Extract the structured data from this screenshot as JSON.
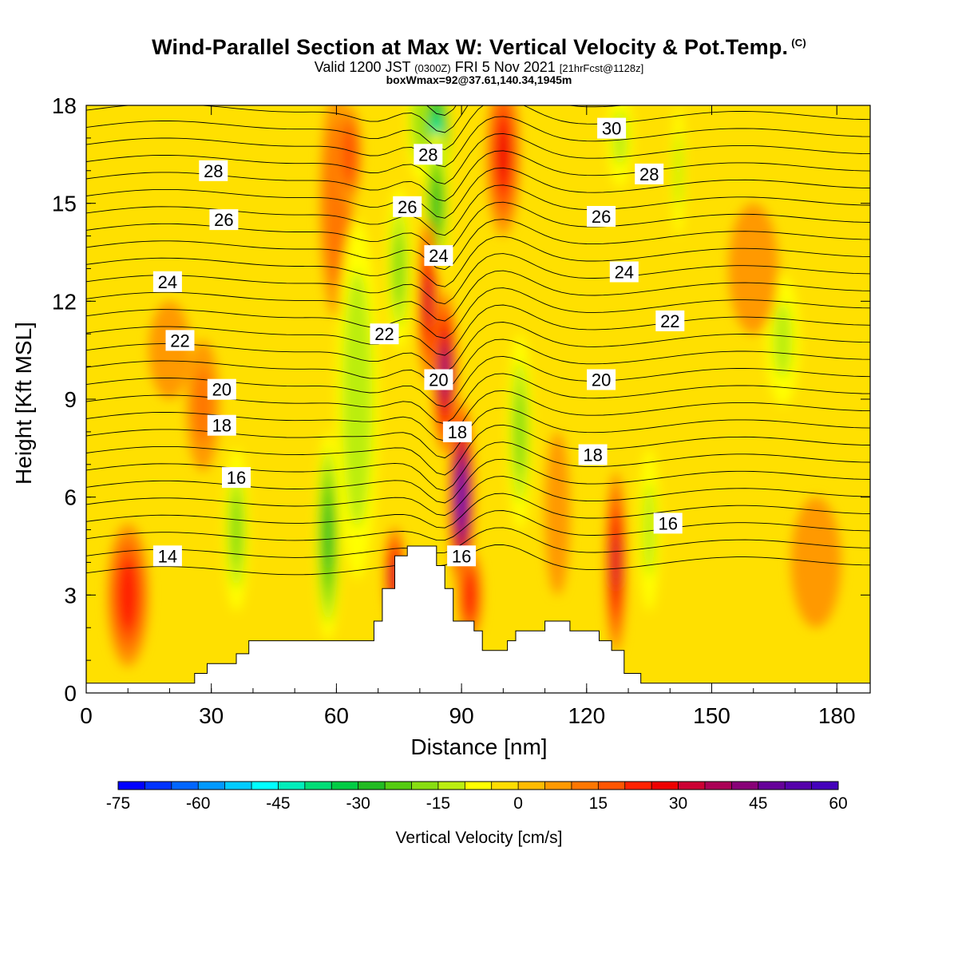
{
  "title": {
    "main": "Wind-Parallel Section at Max W: Vertical Velocity & Pot.Temp.",
    "copyright": "(C)",
    "valid_prefix": "Valid 1200 JST",
    "valid_z": "(0300Z)",
    "valid_date": "FRI 5 Nov 2021",
    "valid_fcst": "[21hrFcst@1128z]",
    "box": "boxWmax=92@37.61,140.34,1945m"
  },
  "chart_data": {
    "type": "heatmap",
    "xlabel": "Distance [nm]",
    "ylabel": "Height [Kft MSL]",
    "xlim": [
      0,
      188
    ],
    "ylim": [
      0,
      18
    ],
    "xticks": [
      "0",
      "30",
      "60",
      "90",
      "120",
      "150",
      "180"
    ],
    "yticks": [
      "0",
      "3",
      "6",
      "9",
      "12",
      "15",
      "18"
    ],
    "colorbar": {
      "label": "Vertical Velocity [cm/s]",
      "ticks": [
        "-75",
        "-60",
        "-45",
        "-30",
        "-15",
        "0",
        "15",
        "30",
        "45",
        "60"
      ],
      "min": -75,
      "max": 60,
      "step": 5,
      "colors": [
        "#0000ff",
        "#0033ff",
        "#0066ff",
        "#0099ff",
        "#00ccff",
        "#00ffff",
        "#00eebb",
        "#00dd77",
        "#00cc44",
        "#22bb22",
        "#55cc11",
        "#88dd11",
        "#bbee11",
        "#ffff00",
        "#ffdd00",
        "#ffbb00",
        "#ff9900",
        "#ff7700",
        "#ff5500",
        "#ff2200",
        "#ee0000",
        "#cc0033",
        "#aa0055",
        "#880077",
        "#660099",
        "#5500aa",
        "#4400bb"
      ]
    },
    "theta_labels": [
      {
        "text": "14",
        "x": 19.5,
        "y": 4.2
      },
      {
        "text": "16",
        "x": 36,
        "y": 6.6
      },
      {
        "text": "18",
        "x": 32.5,
        "y": 8.2
      },
      {
        "text": "20",
        "x": 32.5,
        "y": 9.3
      },
      {
        "text": "22",
        "x": 22.5,
        "y": 10.8
      },
      {
        "text": "24",
        "x": 19.5,
        "y": 12.6
      },
      {
        "text": "26",
        "x": 33,
        "y": 14.5
      },
      {
        "text": "28",
        "x": 30.5,
        "y": 16.0
      },
      {
        "text": "22",
        "x": 71.5,
        "y": 11.0
      },
      {
        "text": "26",
        "x": 77,
        "y": 14.9
      },
      {
        "text": "28",
        "x": 82,
        "y": 16.5
      },
      {
        "text": "24",
        "x": 84.5,
        "y": 13.4
      },
      {
        "text": "20",
        "x": 84.5,
        "y": 9.6
      },
      {
        "text": "18",
        "x": 89,
        "y": 8.0
      },
      {
        "text": "16",
        "x": 90,
        "y": 4.2
      },
      {
        "text": "30",
        "x": 126,
        "y": 17.3
      },
      {
        "text": "28",
        "x": 135,
        "y": 15.9
      },
      {
        "text": "26",
        "x": 123.5,
        "y": 14.6
      },
      {
        "text": "24",
        "x": 129,
        "y": 12.9
      },
      {
        "text": "22",
        "x": 140,
        "y": 11.4
      },
      {
        "text": "20",
        "x": 123.5,
        "y": 9.6
      },
      {
        "text": "18",
        "x": 121.5,
        "y": 7.3
      },
      {
        "text": "16",
        "x": 139.5,
        "y": 5.2
      }
    ],
    "terrain": [
      [
        0,
        0.3
      ],
      [
        26,
        0.3
      ],
      [
        26,
        0.6
      ],
      [
        29,
        0.6
      ],
      [
        29,
        0.9
      ],
      [
        36,
        0.9
      ],
      [
        36,
        1.2
      ],
      [
        39,
        1.2
      ],
      [
        39,
        1.6
      ],
      [
        69,
        1.6
      ],
      [
        69,
        2.2
      ],
      [
        71,
        2.2
      ],
      [
        71,
        3.2
      ],
      [
        74,
        3.2
      ],
      [
        74,
        4.2
      ],
      [
        77,
        4.2
      ],
      [
        77,
        4.5
      ],
      [
        84,
        4.5
      ],
      [
        84,
        3.9
      ],
      [
        86,
        3.9
      ],
      [
        86,
        3.2
      ],
      [
        88,
        3.2
      ],
      [
        88,
        2.2
      ],
      [
        93,
        2.2
      ],
      [
        93,
        1.9
      ],
      [
        95,
        1.9
      ],
      [
        95,
        1.3
      ],
      [
        101,
        1.3
      ],
      [
        101,
        1.6
      ],
      [
        103,
        1.6
      ],
      [
        103,
        1.9
      ],
      [
        110,
        1.9
      ],
      [
        110,
        2.2
      ],
      [
        116,
        2.2
      ],
      [
        116,
        1.9
      ],
      [
        123,
        1.9
      ],
      [
        123,
        1.6
      ],
      [
        126,
        1.6
      ],
      [
        126,
        1.3
      ],
      [
        129,
        1.3
      ],
      [
        129,
        0.6
      ],
      [
        133,
        0.6
      ],
      [
        133,
        0.3
      ],
      [
        188,
        0.3
      ]
    ],
    "w_features": [
      {
        "x": 10,
        "y": 3.0,
        "rx": 5,
        "ry": 2.2,
        "w": 22
      },
      {
        "x": 28,
        "y": 8.8,
        "rx": 4,
        "ry": 2.0,
        "w": 10
      },
      {
        "x": 20,
        "y": 10.5,
        "rx": 5,
        "ry": 1.5,
        "w": 8
      },
      {
        "x": 60,
        "y": 15.0,
        "rx": 4,
        "ry": 3.5,
        "w": 12
      },
      {
        "x": 63,
        "y": 16.5,
        "rx": 3,
        "ry": 1.5,
        "w": 18
      },
      {
        "x": 58,
        "y": 4.8,
        "rx": 3,
        "ry": 3.2,
        "w": -25
      },
      {
        "x": 36,
        "y": 5.0,
        "rx": 3,
        "ry": 2.5,
        "w": -15
      },
      {
        "x": 65,
        "y": 9.0,
        "rx": 5,
        "ry": 5.5,
        "w": -12
      },
      {
        "x": 75,
        "y": 13.0,
        "rx": 3,
        "ry": 2.5,
        "w": -15
      },
      {
        "x": 80,
        "y": 17.5,
        "rx": 3,
        "ry": 1.8,
        "w": -15
      },
      {
        "x": 84,
        "y": 17.0,
        "rx": 3.5,
        "ry": 2.2,
        "w": -40
      },
      {
        "x": 84,
        "y": 15.0,
        "rx": 3,
        "ry": 2.2,
        "w": -25
      },
      {
        "x": 74,
        "y": 3.6,
        "rx": 2.5,
        "ry": 1.5,
        "w": 30
      },
      {
        "x": 82,
        "y": 12.0,
        "rx": 2.5,
        "ry": 2.5,
        "w": 30
      },
      {
        "x": 86,
        "y": 9.8,
        "rx": 3,
        "ry": 2.5,
        "w": 40
      },
      {
        "x": 90,
        "y": 6.0,
        "rx": 3,
        "ry": 3.0,
        "w": 55
      },
      {
        "x": 92,
        "y": 3.0,
        "rx": 3,
        "ry": 1.4,
        "w": 22
      },
      {
        "x": 100,
        "y": 16.5,
        "rx": 4,
        "ry": 2.5,
        "w": 25
      },
      {
        "x": 104,
        "y": 8.0,
        "rx": 3,
        "ry": 3.0,
        "w": -15
      },
      {
        "x": 113,
        "y": 5.5,
        "rx": 3,
        "ry": 2.5,
        "w": 8
      },
      {
        "x": 127,
        "y": 4.0,
        "rx": 2.5,
        "ry": 2.8,
        "w": 30
      },
      {
        "x": 135,
        "y": 5.0,
        "rx": 2.5,
        "ry": 2.5,
        "w": -10
      },
      {
        "x": 128,
        "y": 17.0,
        "rx": 3,
        "ry": 1.5,
        "w": -10
      },
      {
        "x": 142,
        "y": 16.0,
        "rx": 1.5,
        "ry": 2.0,
        "w": -10
      },
      {
        "x": 167,
        "y": 10.8,
        "rx": 4,
        "ry": 2.0,
        "w": -10
      },
      {
        "x": 160,
        "y": 13.0,
        "rx": 6,
        "ry": 2.0,
        "w": 8
      },
      {
        "x": 175,
        "y": 4.0,
        "rx": 6,
        "ry": 2.0,
        "w": 5
      }
    ]
  }
}
